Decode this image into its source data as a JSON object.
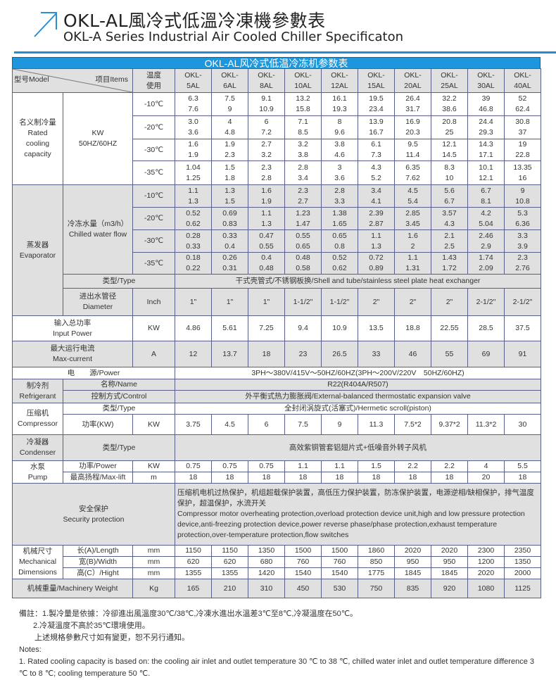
{
  "header": {
    "title": "OKL-AL風冷式低溫冷凍機參數表",
    "subtitle": "OKL-A Series Industrial Air Cooled Chiller Specificaton",
    "icon": "arrow-up-right-icon",
    "accent": "#1e96dc"
  },
  "table": {
    "title": "OKL-AL风冷式低温冷冻机参数表",
    "head": {
      "model": "型号Model",
      "items": "项目Items",
      "temp": "温度\n使用",
      "models": [
        "OKL-\n5AL",
        "OKL-\n6AL",
        "OKL-\n8AL",
        "OKL-\n10AL",
        "OKL-\n12AL",
        "OKL-\n15AL",
        "OKL-\n20AL",
        "OKL-\n25AL",
        "OKL-\n30AL",
        "OKL-\n40AL"
      ]
    },
    "capacity": {
      "label": "名义制冷量\nRated\ncooling\ncapacity",
      "unit": "KW\n50HZ/60HZ",
      "rows": [
        {
          "temp": "-10℃",
          "a": [
            "6.3",
            "7.5",
            "9.1",
            "13.2",
            "16.1",
            "19.5",
            "26.4",
            "32.2",
            "39",
            "52"
          ],
          "b": [
            "7.6",
            "9",
            "10.9",
            "15.8",
            "19.3",
            "23.4",
            "31.7",
            "38.6",
            "46.8",
            "62.4"
          ]
        },
        {
          "temp": "-20℃",
          "a": [
            "3.0",
            "4",
            "6",
            "7.1",
            "8",
            "13.9",
            "16.9",
            "20.8",
            "24.4",
            "30.8"
          ],
          "b": [
            "3.6",
            "4.8",
            "7.2",
            "8.5",
            "9.6",
            "16.7",
            "20.3",
            "25",
            "29.3",
            "37"
          ]
        },
        {
          "temp": "-30℃",
          "a": [
            "1.6",
            "1.9",
            "2.7",
            "3.2",
            "3.8",
            "6.1",
            "9.5",
            "12.1",
            "14.3",
            "19"
          ],
          "b": [
            "1.9",
            "2.3",
            "3.2",
            "3.8",
            "4.6",
            "7.3",
            "11.4",
            "14.5",
            "17.1",
            "22.8"
          ]
        },
        {
          "temp": "-35℃",
          "a": [
            "1.04",
            "1.5",
            "2.3",
            "2.8",
            "3",
            "4.3",
            "6.35",
            "8.3",
            "10.1",
            "13.35"
          ],
          "b": [
            "1.25",
            "1.8",
            "2.8",
            "3.4",
            "3.6",
            "5.2",
            "7.62",
            "10",
            "12.1",
            "16"
          ]
        }
      ]
    },
    "evaporator": {
      "label": "蒸发器\nEvaporator",
      "flow_label": "冷冻水量（m3/h）\nChilled water flow",
      "rows": [
        {
          "temp": "-10℃",
          "a": [
            "1.1",
            "1.3",
            "1.6",
            "2.3",
            "2.8",
            "3.4",
            "4.5",
            "5.6",
            "6.7",
            "9"
          ],
          "b": [
            "1.3",
            "1.5",
            "1.9",
            "2.7",
            "3.3",
            "4.1",
            "5.4",
            "6.7",
            "8.1",
            "10.8"
          ]
        },
        {
          "temp": "-20℃",
          "a": [
            "0.52",
            "0.69",
            "1.1",
            "1.23",
            "1.38",
            "2.39",
            "2.85",
            "3.57",
            "4.2",
            "5.3"
          ],
          "b": [
            "0.62",
            "0.83",
            "1.3",
            "1.47",
            "1.65",
            "2.87",
            "3.45",
            "4.3",
            "5.04",
            "6.36"
          ]
        },
        {
          "temp": "-30℃",
          "a": [
            "0.28",
            "0.33",
            "0.47",
            "0.55",
            "0.65",
            "1.1",
            "1.6",
            "2.1",
            "2.46",
            "3.3"
          ],
          "b": [
            "0.33",
            "0.4",
            "0.55",
            "0.65",
            "0.8",
            "1.3",
            "2",
            "2.5",
            "2.9",
            "3.9"
          ]
        },
        {
          "temp": "-35℃",
          "a": [
            "0.18",
            "0.26",
            "0.4",
            "0.48",
            "0.52",
            "0.72",
            "1.1",
            "1.43",
            "1.74",
            "2.3"
          ],
          "b": [
            "0.22",
            "0.31",
            "0.48",
            "0.58",
            "0.62",
            "0.89",
            "1.31",
            "1.72",
            "2.09",
            "2.76"
          ]
        }
      ],
      "type_label": "类型/Type",
      "type_value": "干式壳管式/不锈钢板换/Shell and tube/stainless steel plate heat exchanger",
      "diameter_label": "进出水管径\nDiameter",
      "diameter_unit": "Inch",
      "diameter": [
        "1\"",
        "1\"",
        "1\"",
        "1-1/2\"",
        "1-1/2\"",
        "2\"",
        "2\"",
        "2\"",
        "2-1/2\"",
        "2-1/2\""
      ]
    },
    "input_power": {
      "label": "输入总功率\nInput Power",
      "unit": "KW",
      "values": [
        "4.86",
        "5.61",
        "7.25",
        "9.4",
        "10.9",
        "13.5",
        "18.8",
        "22.55",
        "28.5",
        "37.5"
      ]
    },
    "max_current": {
      "label": "最大运行电流\nMax-current",
      "unit": "A",
      "values": [
        "12",
        "13.7",
        "18",
        "23",
        "26.5",
        "33",
        "46",
        "55",
        "69",
        "91"
      ]
    },
    "power": {
      "label": "电　　源/Power",
      "value": "3PH～380V/415V～50HZ/60HZ(3PH～200V/220V　50HZ/60HZ)"
    },
    "refrigerant": {
      "label": "制冷剂\nRefrigerant",
      "name_label": "名称/Name",
      "name": "R22(R404A/R507)",
      "control_label": "控制方式/Control",
      "control": "外平衡式热力膨胀阀/External-balanced thermostatic expansion valve"
    },
    "compressor": {
      "label": "压缩机\nCompressor",
      "type_label": "类型/Type",
      "type": "全封闭涡旋式(活塞式)/Hermetic scroll(piston)",
      "power_label": "功率(KW)",
      "power_unit": "KW",
      "power": [
        "3.75",
        "4.5",
        "6",
        "7.5",
        "9",
        "11.3",
        "7.5*2",
        "9.37*2",
        "11.3*2",
        "30"
      ]
    },
    "condenser": {
      "label": "冷凝器\nCondenser",
      "type_label": "类型/Type",
      "type": "高效紫铜管套铝翅片式+低噪音外转子风机"
    },
    "pump": {
      "label": "水泵\nPump",
      "power_label": "功率/Power",
      "power_unit": "KW",
      "power": [
        "0.75",
        "0.75",
        "0.75",
        "1.1",
        "1.1",
        "1.5",
        "2.2",
        "2.2",
        "4",
        "5.5"
      ],
      "lift_label": "最高扬程/Max-lift",
      "lift_unit": "m",
      "lift": [
        "18",
        "18",
        "18",
        "18",
        "18",
        "18",
        "18",
        "18",
        "20",
        "18"
      ]
    },
    "security": {
      "label": "安全保护\nSecurity protection",
      "cn": "压缩机电机过热保护，机组超载保护装置，高低压力保护装置，防冻保护装置，电源逆相/缺相保护，排气温度保护，超温保护，水流开关",
      "en": "Compressor motor overheating protection,overload protection device unit,high and low pressure protection device,anti-freezing protection device,power reverse phase/phase protection,exhaust temperature protection,over-temperature protection,flow switches"
    },
    "dimensions": {
      "label": "机械尺寸\nMechanical\nDimensions",
      "rows": [
        {
          "label": "长(A)/Length",
          "unit": "mm",
          "values": [
            "1150",
            "1150",
            "1350",
            "1500",
            "1500",
            "1860",
            "2020",
            "2020",
            "2300",
            "2350"
          ]
        },
        {
          "label": "宽(B)/Width",
          "unit": "mm",
          "values": [
            "620",
            "620",
            "680",
            "760",
            "760",
            "850",
            "950",
            "950",
            "1200",
            "1350"
          ]
        },
        {
          "label": "高(C）/Hight",
          "unit": "mm",
          "values": [
            "1355",
            "1355",
            "1420",
            "1540",
            "1540",
            "1775",
            "1845",
            "1845",
            "2020",
            "2000"
          ]
        }
      ]
    },
    "weight": {
      "label": "机械重量/Machinery Weight",
      "unit": "Kg",
      "values": [
        "165",
        "210",
        "310",
        "450",
        "530",
        "750",
        "835",
        "920",
        "1080",
        "1125"
      ]
    }
  },
  "notes": {
    "cn1": "備註：1.製冷量是依據：冷卻進出風溫度30℃/38℃,冷凍水進出水溫差3℃至8℃,冷凝溫度在50℃。",
    "cn2": "2.冷凝溫度不高於35℃環境使用。",
    "cn3": "上述規格參數尺寸如有變更，恕不另行通知。",
    "en_title": "Notes:",
    "en1": "1. Rated cooling capacity is based on: the cooling air inlet and outlet temperature 30 ℃ to 38 ℃, chilled water inlet and outlet temperature difference 3 ℃ to 8 ℃; cooling temperature 50 ℃."
  }
}
